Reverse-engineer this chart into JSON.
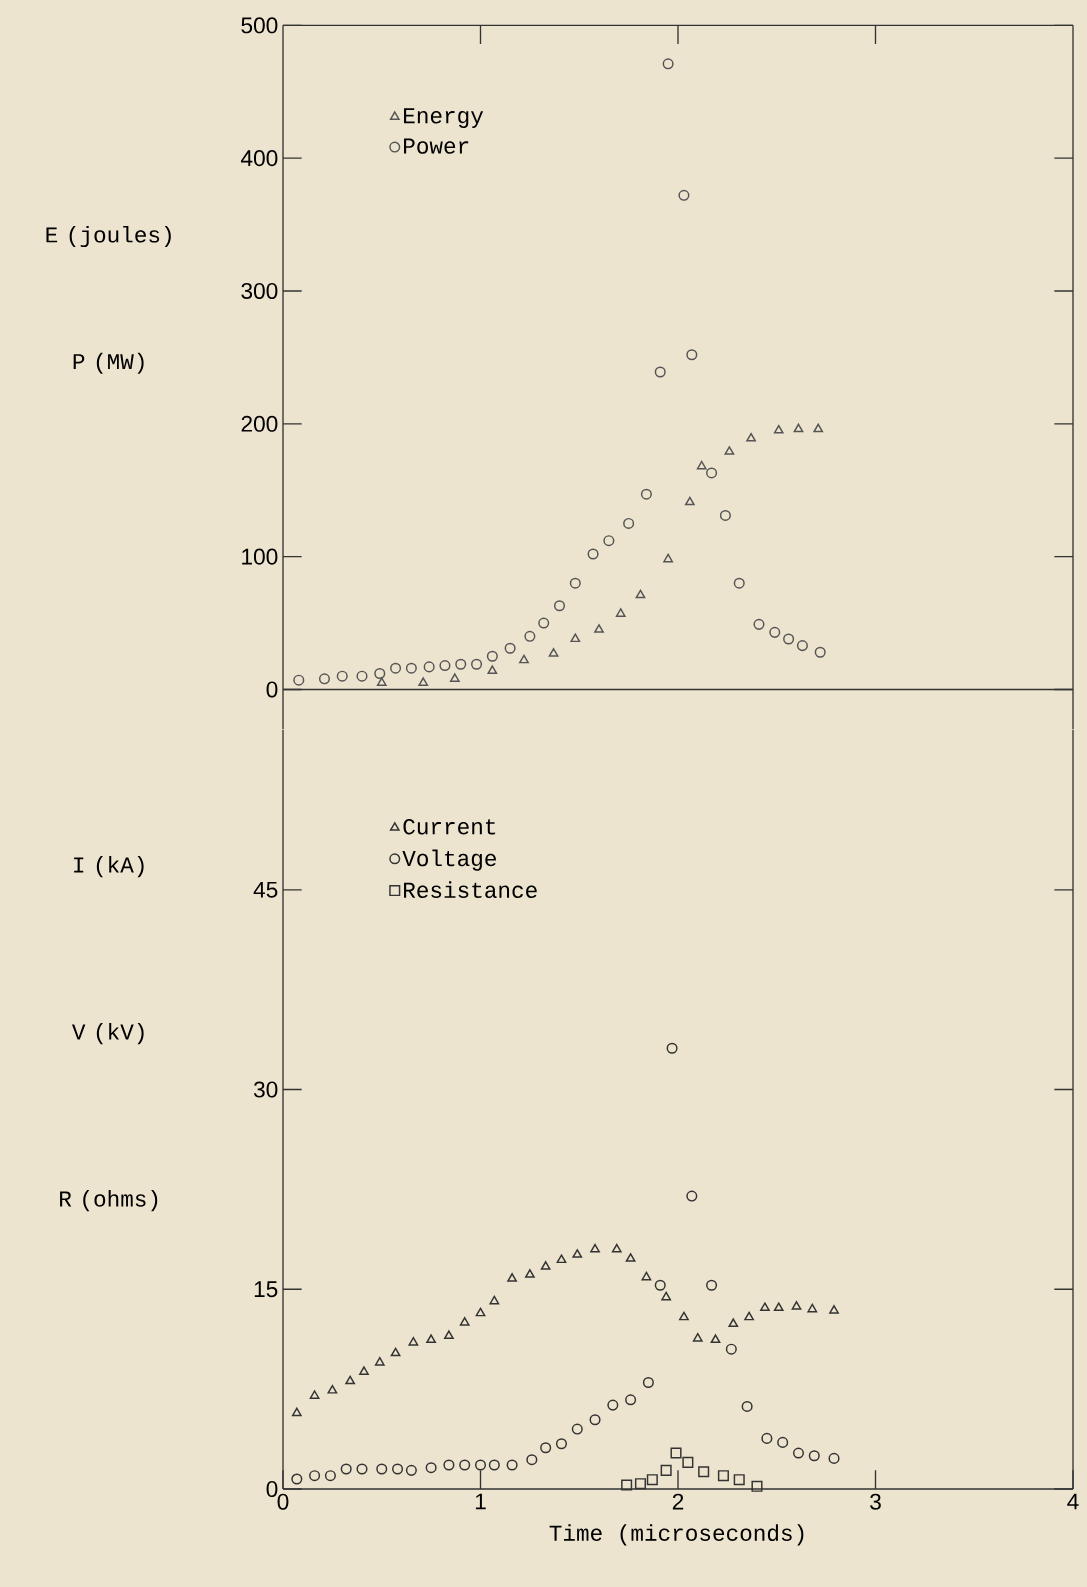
{
  "chart_data": [
    {
      "type": "scatter",
      "ylabel": "E (joules)",
      "annotations": [
        "P (MW)"
      ],
      "xlim": [
        0,
        4
      ],
      "xticks": [
        1,
        2,
        3
      ],
      "ylim": [
        -30,
        500
      ],
      "yticks": [
        0,
        100,
        200,
        300,
        400,
        500
      ],
      "tick_labels": "y",
      "legend": "top left",
      "ref_lines": [
        {
          "axis": "y",
          "value": 0
        }
      ],
      "series": [
        {
          "name": "Energy",
          "color": "#555555",
          "marker": "triangle",
          "x": [
            0.5,
            0.71,
            0.87,
            1.06,
            1.22,
            1.37,
            1.48,
            1.6,
            1.71,
            1.81,
            1.95,
            2.06,
            2.12,
            2.26,
            2.37,
            2.51,
            2.61,
            2.71
          ],
          "values": [
            5,
            5,
            8,
            14,
            22,
            27,
            38,
            45,
            57,
            71,
            98,
            141,
            168,
            179,
            189,
            195,
            196,
            196
          ]
        },
        {
          "name": "Power",
          "color": "#555555",
          "marker": "circle",
          "x": [
            0.08,
            0.21,
            0.3,
            0.4,
            0.49,
            0.57,
            0.65,
            0.74,
            0.82,
            0.9,
            0.98,
            1.06,
            1.15,
            1.25,
            1.32,
            1.4,
            1.48,
            1.57,
            1.65,
            1.75,
            1.84,
            1.91,
            1.95,
            2.03,
            2.07,
            2.17,
            2.24,
            2.31,
            2.41,
            2.49,
            2.56,
            2.63,
            2.72
          ],
          "values": [
            7,
            8,
            10,
            10,
            12,
            16,
            16,
            17,
            18,
            19,
            19,
            25,
            31,
            40,
            50,
            63,
            80,
            102,
            112,
            125,
            147,
            239,
            471,
            372,
            252,
            163,
            131,
            80,
            49,
            43,
            38,
            33,
            28
          ]
        }
      ]
    },
    {
      "type": "scatter",
      "ylabel": "I (kA)",
      "annotations": [
        "V (kV)",
        "R (ohms)"
      ],
      "xlabel": "Time (microseconds)",
      "xlim": [
        0,
        4
      ],
      "xticks": [
        0,
        1,
        2,
        3,
        4
      ],
      "ylim": [
        0,
        57
      ],
      "yticks": [
        0,
        15,
        30,
        45
      ],
      "legend": "top left",
      "series": [
        {
          "name": "Current",
          "color": "#333333",
          "marker": "triangle",
          "x": [
            0.07,
            0.16,
            0.25,
            0.34,
            0.41,
            0.49,
            0.57,
            0.66,
            0.75,
            0.84,
            0.92,
            1.0,
            1.07,
            1.16,
            1.25,
            1.33,
            1.41,
            1.49,
            1.58,
            1.69,
            1.76,
            1.84,
            1.94,
            2.03,
            2.1,
            2.19,
            2.28,
            2.36,
            2.44,
            2.51,
            2.6,
            2.68,
            2.79
          ],
          "values": [
            5.7,
            7.0,
            7.4,
            8.1,
            8.8,
            9.5,
            10.2,
            11.0,
            11.2,
            11.5,
            12.5,
            13.2,
            14.1,
            15.8,
            16.1,
            16.7,
            17.2,
            17.6,
            18.0,
            18.0,
            17.3,
            15.9,
            14.4,
            12.9,
            11.3,
            11.2,
            12.4,
            12.9,
            13.6,
            13.6,
            13.7,
            13.5,
            13.4
          ]
        },
        {
          "name": "Voltage",
          "color": "#333333",
          "marker": "circle",
          "x": [
            0.07,
            0.16,
            0.24,
            0.32,
            0.4,
            0.5,
            0.58,
            0.65,
            0.75,
            0.84,
            0.92,
            1.0,
            1.07,
            1.16,
            1.26,
            1.33,
            1.41,
            1.49,
            1.58,
            1.67,
            1.76,
            1.85,
            1.91,
            1.97,
            2.07,
            2.17,
            2.27,
            2.35,
            2.45,
            2.53,
            2.61,
            2.69,
            2.79
          ],
          "values": [
            0.75,
            1.0,
            1.0,
            1.5,
            1.5,
            1.5,
            1.5,
            1.4,
            1.6,
            1.8,
            1.8,
            1.8,
            1.8,
            1.8,
            2.2,
            3.1,
            3.4,
            4.5,
            5.2,
            6.3,
            6.7,
            8.0,
            15.3,
            33.1,
            22.0,
            15.3,
            10.5,
            6.2,
            3.8,
            3.5,
            2.7,
            2.5,
            2.3
          ]
        },
        {
          "name": "Resistance",
          "color": "#333333",
          "marker": "square",
          "x": [
            1.74,
            1.81,
            1.87,
            1.94,
            1.99,
            2.05,
            2.13,
            2.23,
            2.31,
            2.4
          ],
          "values": [
            0.3,
            0.4,
            0.7,
            1.4,
            2.7,
            2.0,
            1.3,
            1.0,
            0.7,
            0.2
          ]
        }
      ]
    }
  ]
}
